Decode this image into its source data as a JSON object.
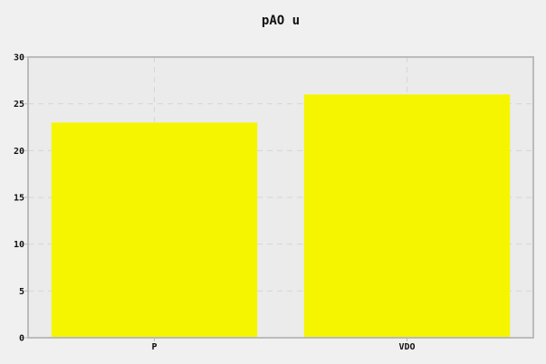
{
  "chart_data": {
    "type": "bar",
    "title": "pAO u",
    "xlabel": "",
    "ylabel": "",
    "categories": [
      "P",
      "VDO"
    ],
    "values": [
      23,
      26
    ],
    "ylim": [
      0,
      30
    ],
    "yticks": [
      0,
      5,
      10,
      15,
      20,
      25,
      30
    ],
    "grid": true,
    "legend": "none",
    "colors": {
      "bar": "#f5f500",
      "plot_background": "#ebebeb",
      "page_background": "#f0f0f0",
      "grid": "#d6d6d6",
      "frame": "#bbbbbb"
    }
  }
}
